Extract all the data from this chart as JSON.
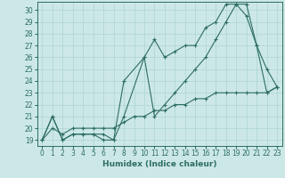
{
  "xlabel": "Humidex (Indice chaleur)",
  "xlim": [
    -0.5,
    23.5
  ],
  "ylim": [
    18.5,
    30.7
  ],
  "yticks": [
    19,
    20,
    21,
    22,
    23,
    24,
    25,
    26,
    27,
    28,
    29,
    30
  ],
  "xticks": [
    0,
    1,
    2,
    3,
    4,
    5,
    6,
    7,
    8,
    9,
    10,
    11,
    12,
    13,
    14,
    15,
    16,
    17,
    18,
    19,
    20,
    21,
    22,
    23
  ],
  "bg_color": "#cce8e6",
  "grid_color": "#b0d8d5",
  "line_color": "#2e6e62",
  "line1_x": [
    0,
    1,
    2,
    3,
    4,
    5,
    6,
    7,
    8,
    10,
    11,
    12,
    13,
    14,
    15,
    16,
    17,
    18,
    19,
    20,
    21,
    22,
    23
  ],
  "line1_y": [
    19,
    21,
    19,
    19.5,
    19.5,
    19.5,
    19,
    19,
    21,
    26,
    27.5,
    26,
    26.5,
    27,
    27,
    28.5,
    29,
    30.5,
    30.5,
    29.5,
    27,
    23,
    23.5
  ],
  "line2_x": [
    0,
    1,
    2,
    3,
    4,
    5,
    6,
    7,
    8,
    10,
    11,
    12,
    13,
    14,
    15,
    16,
    17,
    18,
    19,
    20,
    21,
    22,
    23
  ],
  "line2_y": [
    19,
    21,
    19,
    19.5,
    19.5,
    19.5,
    19.5,
    19,
    24,
    26,
    21,
    22,
    23,
    24,
    25,
    26,
    27.5,
    29,
    30.5,
    30.5,
    27,
    25,
    23.5
  ],
  "line3_x": [
    0,
    1,
    2,
    3,
    4,
    5,
    6,
    7,
    8,
    9,
    10,
    11,
    12,
    13,
    14,
    15,
    16,
    17,
    18,
    19,
    20,
    21,
    22,
    23
  ],
  "line3_y": [
    19,
    20,
    19.5,
    20,
    20,
    20,
    20,
    20,
    20.5,
    21,
    21,
    21.5,
    21.5,
    22,
    22,
    22.5,
    22.5,
    23,
    23,
    23,
    23,
    23,
    23,
    23.5
  ],
  "tick_fontsize": 5.5,
  "xlabel_fontsize": 6.5,
  "lw": 0.8,
  "marker_size": 3.0
}
